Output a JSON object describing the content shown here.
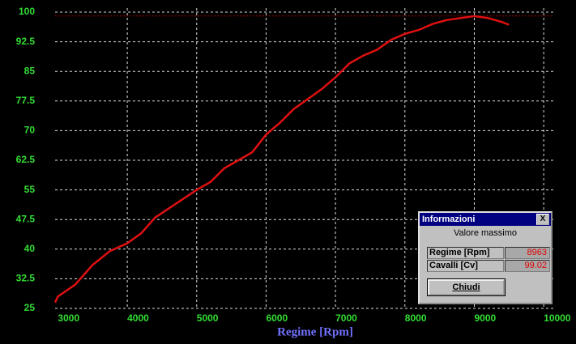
{
  "chart_data": {
    "type": "line",
    "x_label": "Regime [Rpm]",
    "x": [
      2960,
      3000,
      3250,
      3500,
      3750,
      4000,
      4200,
      4400,
      4700,
      5000,
      5200,
      5400,
      5600,
      5800,
      6000,
      6200,
      6400,
      6600,
      6800,
      7000,
      7200,
      7400,
      7600,
      7800,
      8000,
      8200,
      8400,
      8600,
      8800,
      9000,
      9200,
      9400,
      9500
    ],
    "values": [
      26.5,
      28,
      31,
      36,
      39.5,
      41.5,
      44,
      48,
      51.5,
      55,
      57,
      60.5,
      62.5,
      64.5,
      69,
      72,
      75.5,
      78,
      80.5,
      83.5,
      87,
      89,
      90.5,
      93,
      94.5,
      95.5,
      97,
      98,
      98.5,
      99,
      98.5,
      97.5,
      96.8
    ],
    "color": "#e01010",
    "xlim": [
      2960,
      10150
    ],
    "xticks": [
      3000,
      4000,
      5000,
      6000,
      7000,
      8000,
      9000,
      10000
    ],
    "ylim": [
      25,
      100
    ],
    "yticks": [
      25,
      32.5,
      40,
      47.5,
      55,
      62.5,
      70,
      77.5,
      85,
      92.5,
      100
    ],
    "grid": true
  },
  "dialog": {
    "title": "Informazioni",
    "close": "X",
    "subtitle": "Valore massimo",
    "rows": [
      {
        "label": "Regime [Rpm]",
        "value": 8963
      },
      {
        "label": "Cavalli [Cv]",
        "value": 99.02
      }
    ],
    "button": "Chiudi"
  }
}
